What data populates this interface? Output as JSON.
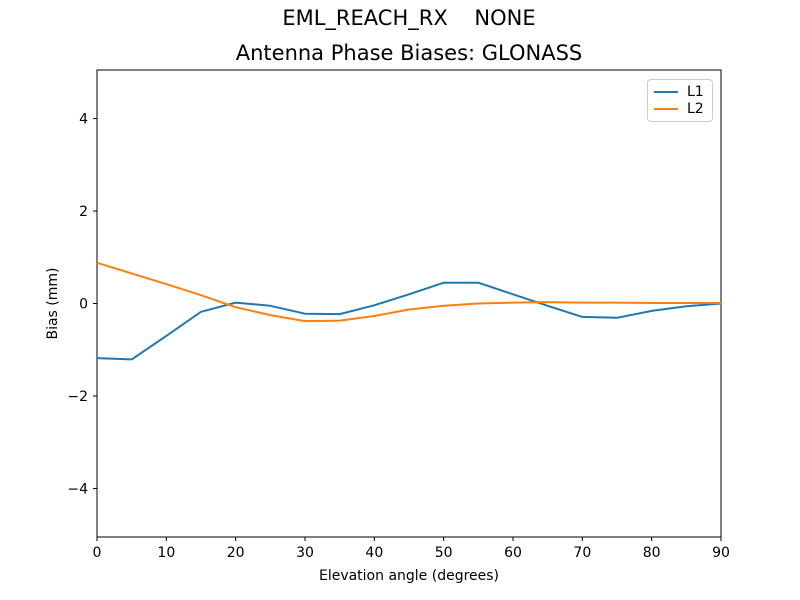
{
  "suptitle": "EML_REACH_RX    NONE",
  "chart_data": {
    "type": "line",
    "title": "Antenna Phase Biases: GLONASS",
    "xlabel": "Elevation angle (degrees)",
    "ylabel": "Bias (mm)",
    "xlim": [
      0,
      90
    ],
    "ylim": [
      -5.05,
      5.05
    ],
    "x_ticks": [
      0,
      10,
      20,
      30,
      40,
      50,
      60,
      70,
      80,
      90
    ],
    "y_ticks": [
      -4,
      -2,
      0,
      2,
      4
    ],
    "grid": false,
    "legend_position": "upper right",
    "x": [
      0,
      5,
      10,
      15,
      20,
      25,
      30,
      35,
      40,
      45,
      50,
      55,
      60,
      65,
      70,
      75,
      80,
      85,
      90
    ],
    "series": [
      {
        "name": "L1",
        "color": "#1f77b4",
        "values": [
          -1.18,
          -1.21,
          -0.7,
          -0.18,
          0.02,
          -0.05,
          -0.22,
          -0.23,
          -0.04,
          0.2,
          0.45,
          0.45,
          0.2,
          -0.05,
          -0.29,
          -0.31,
          -0.16,
          -0.06,
          0.0
        ]
      },
      {
        "name": "L2",
        "color": "#ff7f0e",
        "values": [
          0.88,
          0.65,
          0.42,
          0.18,
          -0.08,
          -0.25,
          -0.38,
          -0.37,
          -0.27,
          -0.13,
          -0.05,
          0.0,
          0.02,
          0.03,
          0.02,
          0.02,
          0.01,
          0.01,
          0.01
        ]
      }
    ]
  }
}
